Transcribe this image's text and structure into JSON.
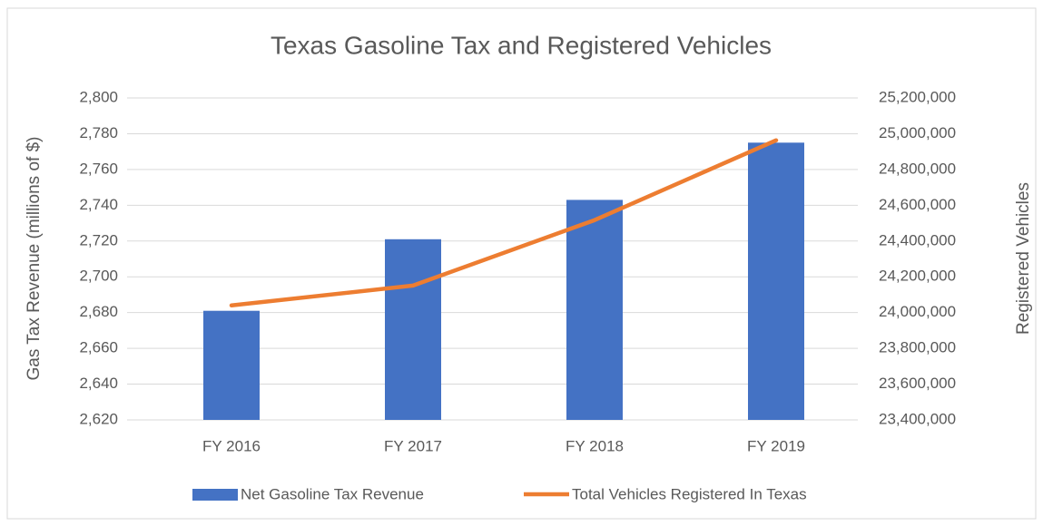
{
  "chart_data": {
    "type": "bar_line",
    "title": "Texas Gasoline Tax and Registered Vehicles",
    "y_label": "Gas Tax Revenue (millions of $)",
    "y2_label": "Registered Vehicles",
    "categories": [
      "FY 2016",
      "FY 2017",
      "FY 2018",
      "FY 2019"
    ],
    "series": [
      {
        "name": "Net Gasoline Tax Revenue",
        "type": "bar",
        "color": "#4472c4",
        "values": [
          2681,
          2721,
          2743,
          2775
        ]
      },
      {
        "name": "Total Vehicles Registered In Texas",
        "type": "line",
        "axis": "y2",
        "color": "#ed7d31",
        "values": [
          24040000,
          24151000,
          24517000,
          24963000
        ]
      }
    ],
    "ylim": [
      2620,
      2800
    ],
    "yticks": [
      {
        "value": 2620,
        "label": "2,620"
      },
      {
        "value": 2640,
        "label": "2,640"
      },
      {
        "value": 2660,
        "label": "2,660"
      },
      {
        "value": 2680,
        "label": "2,680"
      },
      {
        "value": 2700,
        "label": "2,700"
      },
      {
        "value": 2720,
        "label": "2,720"
      },
      {
        "value": 2740,
        "label": "2,740"
      },
      {
        "value": 2760,
        "label": "2,760"
      },
      {
        "value": 2780,
        "label": "2,780"
      },
      {
        "value": 2800,
        "label": "2,800"
      }
    ],
    "y2lim": [
      23400000,
      25200000
    ],
    "y2ticks": [
      {
        "value": 23400000,
        "label": "23,400,000"
      },
      {
        "value": 23600000,
        "label": "23,600,000"
      },
      {
        "value": 23800000,
        "label": "23,800,000"
      },
      {
        "value": 24000000,
        "label": "24,000,000"
      },
      {
        "value": 24200000,
        "label": "24,200,000"
      },
      {
        "value": 24400000,
        "label": "24,400,000"
      },
      {
        "value": 24600000,
        "label": "24,600,000"
      },
      {
        "value": 24800000,
        "label": "24,800,000"
      },
      {
        "value": 25000000,
        "label": "25,000,000"
      },
      {
        "value": 25200000,
        "label": "25,200,000"
      }
    ],
    "grid": true,
    "legend": "bottom"
  }
}
